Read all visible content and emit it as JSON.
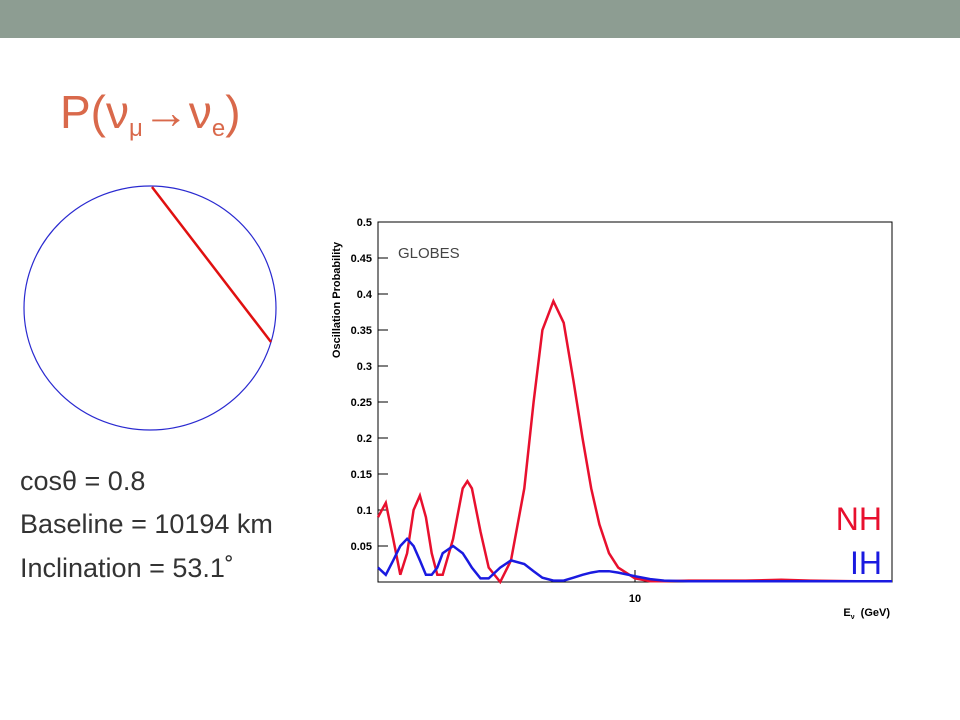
{
  "slide": {
    "title": [
      "P(",
      "ν",
      "μ",
      "→",
      "ν",
      "e",
      ")"
    ],
    "lines": [
      "cosθ = 0.8",
      "Baseline = 10194 km",
      "Inclination = 53.1˚"
    ]
  },
  "chart_data": {
    "type": "line",
    "annotation": "GLOBES",
    "ylabel": "Oscillation Probability",
    "xlabel": "E",
    "xlabel_sub": "ν",
    "xlabel_unit": "(GeV)",
    "xscale": "log",
    "xlim": [
      2,
      50
    ],
    "xticks": [
      10
    ],
    "ylim": [
      0,
      0.5
    ],
    "yticks": [
      0.05,
      0.1,
      0.15,
      0.2,
      0.25,
      0.3,
      0.35,
      0.4,
      0.45,
      0.5
    ],
    "grid": false,
    "x": [
      2.0,
      2.1,
      2.2,
      2.3,
      2.4,
      2.5,
      2.6,
      2.7,
      2.8,
      2.9,
      3.0,
      3.2,
      3.4,
      3.5,
      3.6,
      3.8,
      4.0,
      4.3,
      4.6,
      5.0,
      5.3,
      5.6,
      6.0,
      6.4,
      6.8,
      7.2,
      7.6,
      8.0,
      8.5,
      9,
      10,
      11,
      12,
      14,
      16,
      20,
      25,
      30,
      40,
      50
    ],
    "series": [
      {
        "name": "NH",
        "color": "#e8102e",
        "values": [
          0.09,
          0.11,
          0.06,
          0.01,
          0.04,
          0.1,
          0.12,
          0.09,
          0.04,
          0.01,
          0.01,
          0.06,
          0.13,
          0.14,
          0.13,
          0.07,
          0.02,
          0.0,
          0.03,
          0.13,
          0.25,
          0.35,
          0.39,
          0.36,
          0.28,
          0.2,
          0.13,
          0.08,
          0.04,
          0.02,
          0.005,
          0.001,
          0.001,
          0.002,
          0.002,
          0.002,
          0.003,
          0.002,
          0.001,
          0.001
        ]
      },
      {
        "name": "IH",
        "color": "#1a1ae0",
        "values": [
          0.02,
          0.01,
          0.03,
          0.05,
          0.06,
          0.05,
          0.03,
          0.01,
          0.01,
          0.02,
          0.04,
          0.05,
          0.04,
          0.03,
          0.02,
          0.005,
          0.005,
          0.02,
          0.03,
          0.025,
          0.015,
          0.006,
          0.002,
          0.002,
          0.006,
          0.01,
          0.013,
          0.015,
          0.015,
          0.013,
          0.008,
          0.004,
          0.002,
          0.001,
          0.001,
          0.001,
          0.001,
          0.001,
          0.001,
          0.001
        ]
      }
    ]
  }
}
